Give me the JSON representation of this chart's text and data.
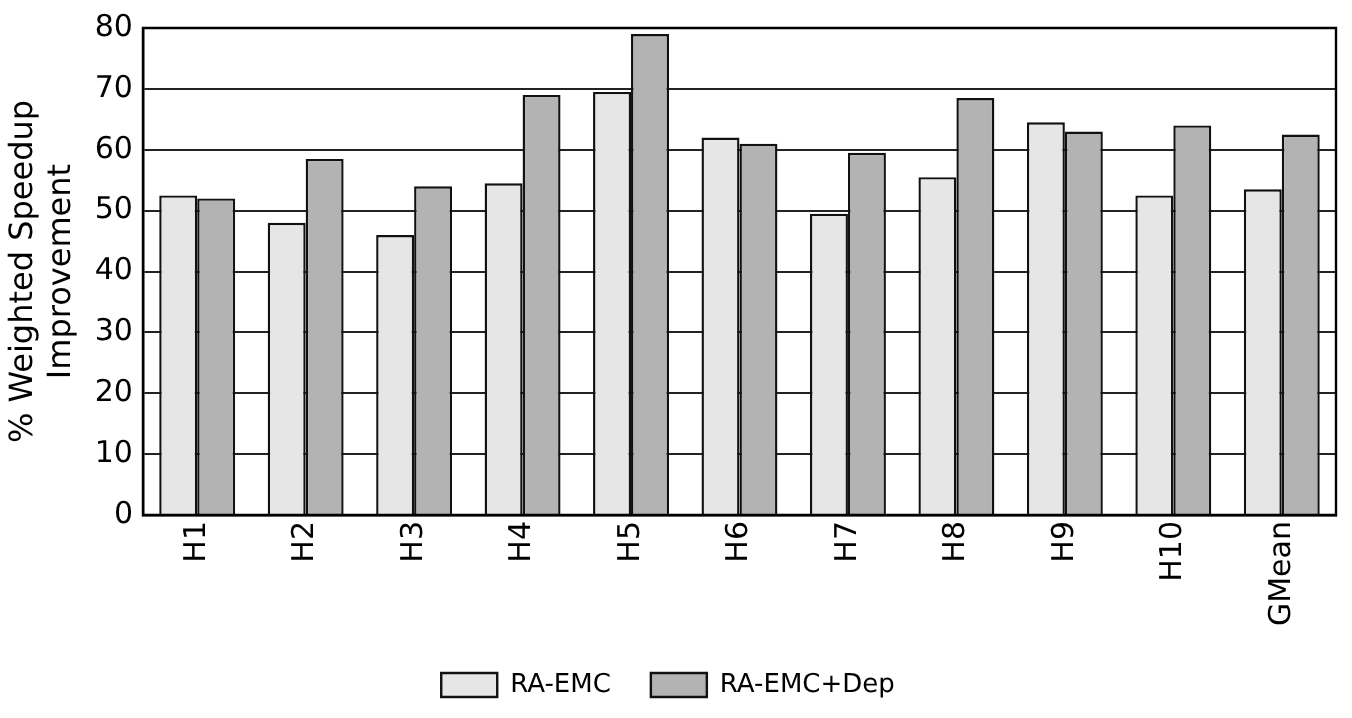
{
  "chart_data": {
    "type": "bar",
    "ylabel": "% Weighted Speedup\nImprovement",
    "categories": [
      "H1",
      "H2",
      "H3",
      "H4",
      "H5",
      "H6",
      "H7",
      "H8",
      "H9",
      "H10",
      "GMean"
    ],
    "series": [
      {
        "name": "RA-EMC",
        "color": "#e6e6e6",
        "values": [
          52.5,
          48,
          46,
          54.5,
          69.5,
          62,
          49.5,
          55.5,
          64.5,
          52.5,
          53.5
        ]
      },
      {
        "name": "RA-EMC+Dep",
        "color": "#b3b3b3",
        "values": [
          52,
          58.5,
          54,
          69,
          79,
          61,
          59.5,
          68.5,
          63,
          64,
          62.5
        ]
      }
    ],
    "ylim": [
      0,
      80
    ],
    "yticks": [
      0,
      10,
      20,
      30,
      40,
      50,
      60,
      70,
      80
    ],
    "grid": "y",
    "legend": "bottom"
  }
}
